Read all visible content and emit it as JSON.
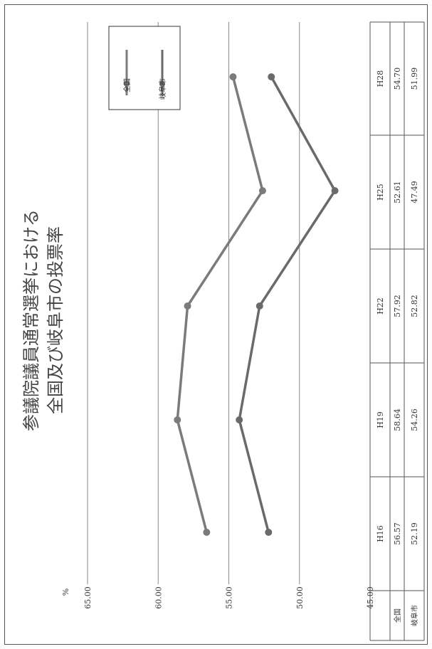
{
  "chart_data": {
    "type": "line",
    "title_lines": [
      "参議院議員通常選挙における",
      "全国及び岐阜市の投票率"
    ],
    "ylabel": "%",
    "ylim": [
      45,
      65
    ],
    "yticks": [
      "45.00",
      "50.00",
      "55.00",
      "60.00",
      "65.00"
    ],
    "grid": true,
    "legend_position": "top-right",
    "categories": [
      "H16",
      "H19",
      "H22",
      "H25",
      "H28"
    ],
    "series": [
      {
        "name": "全国",
        "values": [
          56.57,
          58.64,
          57.92,
          52.61,
          54.7
        ],
        "labels": [
          "56.57",
          "58.64",
          "57.92",
          "52.61",
          "54.70"
        ],
        "color": "#7b7b7b"
      },
      {
        "name": "岐阜市",
        "values": [
          52.19,
          54.26,
          52.82,
          47.49,
          51.99
        ],
        "labels": [
          "52.19",
          "54.26",
          "52.82",
          "47.49",
          "51.99"
        ],
        "color": "#6a6a6a"
      }
    ]
  }
}
